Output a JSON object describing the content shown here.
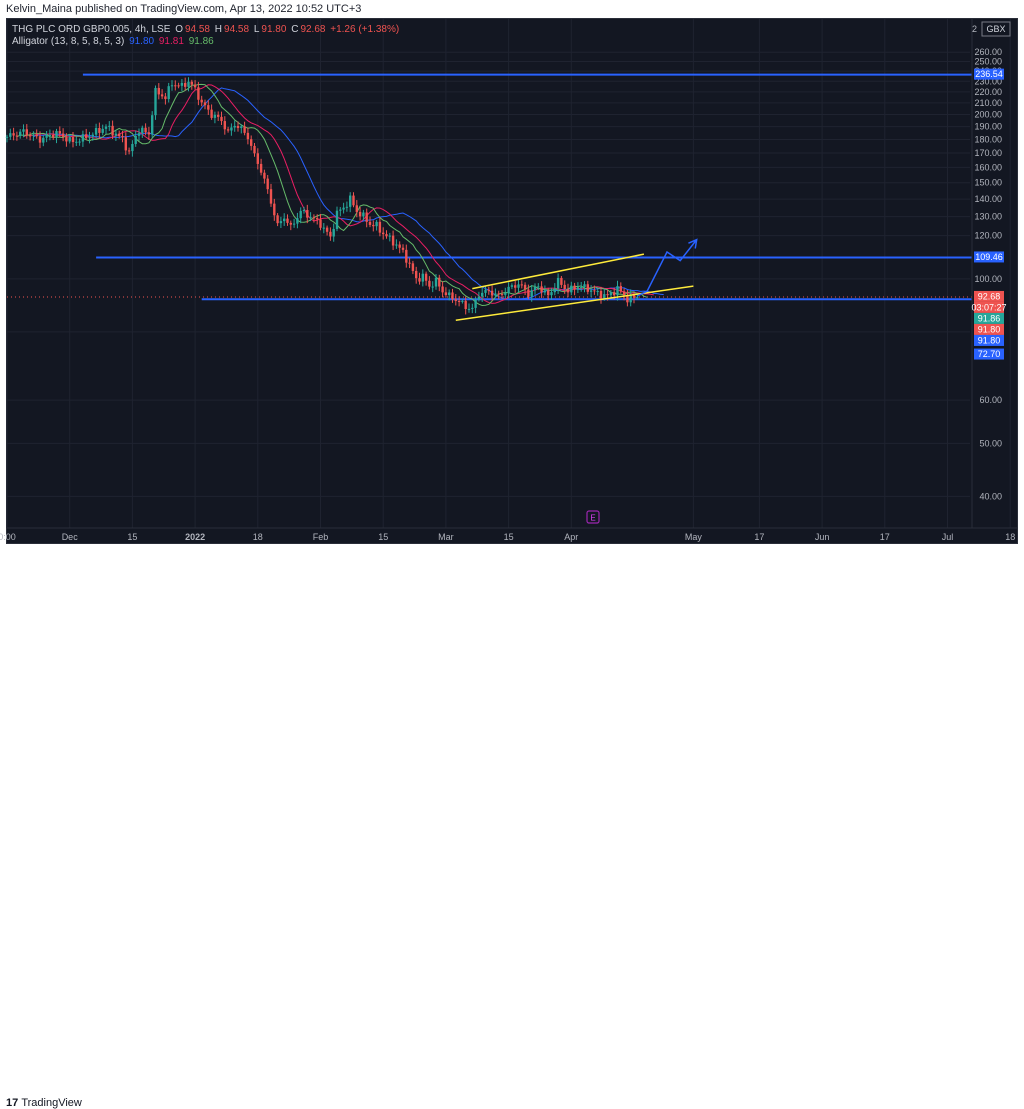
{
  "header": {
    "publish_line": "Kelvin_Maina published on TradingView.com, Apr 13, 2022 10:52 UTC+3"
  },
  "legend": {
    "symbol": "THG PLC ORD GBP0.005, 4h, LSE",
    "open_label": "O",
    "open": "94.58",
    "high_label": "H",
    "high": "94.58",
    "low_label": "L",
    "low": "91.80",
    "close_label": "C",
    "close": "92.68",
    "change": "+1.26 (+1.38%)",
    "indicator": "Alligator (13, 8, 5, 8, 5, 3)",
    "jaw": "91.80",
    "teeth": "91.81",
    "lips": "91.86"
  },
  "currency": "GBX",
  "corner_label": "2",
  "event_marker": "E",
  "footer": {
    "logo_text": "TradingView",
    "logo_mark": "17"
  },
  "colors": {
    "background": "#131722",
    "up": "#26a69a",
    "down": "#ef5350",
    "jaw": "#2962ff",
    "teeth": "#e91e63",
    "lips": "#66bb6a",
    "level_line": "#2962ff",
    "channel": "#ffeb3b"
  },
  "chart_data": {
    "type": "candlestick",
    "title": "THG PLC ORD GBP0.005, 4h, LSE",
    "ylim": [
      35,
      268
    ],
    "y_ticks": [
      260,
      250,
      240,
      230,
      220,
      210,
      200,
      190,
      180,
      170,
      160,
      150,
      140,
      130,
      120,
      100,
      80,
      60,
      50,
      40
    ],
    "x_ticks": [
      "0:00",
      "Dec",
      "15",
      "2022",
      "18",
      "Feb",
      "15",
      "Mar",
      "15",
      "Apr",
      "May",
      "17",
      "Jun",
      "17",
      "Jul",
      "18"
    ],
    "x_tick_index": [
      0,
      19,
      38,
      57,
      76,
      95,
      114,
      133,
      152,
      171,
      208,
      228,
      247,
      266,
      285,
      304
    ],
    "price_path": {
      "x": [
        0,
        5,
        10,
        15,
        20,
        25,
        30,
        35,
        37,
        40,
        43,
        45,
        48,
        50,
        53,
        55,
        57,
        59,
        62,
        65,
        67,
        69,
        71,
        73,
        75,
        77,
        79,
        82,
        84,
        86,
        89,
        92,
        95,
        98,
        100,
        102,
        104,
        106,
        108,
        110,
        112,
        114,
        117,
        120,
        122,
        124,
        126,
        128,
        130,
        132,
        134,
        137,
        139,
        141,
        143,
        146,
        149,
        152,
        155,
        158,
        161,
        164,
        167,
        170,
        173,
        176,
        179,
        182,
        185,
        188,
        191
      ],
      "close": [
        182,
        186,
        180,
        185,
        178,
        183,
        190,
        180,
        170,
        188,
        184,
        220,
        215,
        228,
        225,
        230,
        222,
        210,
        200,
        195,
        185,
        192,
        188,
        182,
        168,
        158,
        145,
        125,
        130,
        124,
        133,
        130,
        126,
        119,
        132,
        135,
        140,
        133,
        130,
        126,
        125,
        121,
        117,
        112,
        106,
        100,
        101,
        97,
        99,
        95,
        93,
        91,
        89,
        88,
        94,
        95,
        93,
        96,
        98,
        94,
        97,
        93,
        99,
        95,
        97,
        96,
        94,
        93,
        96,
        92,
        92.68
      ]
    },
    "series": [
      {
        "name": "Alligator Jaw",
        "value": 91.8
      },
      {
        "name": "Alligator Teeth",
        "value": 91.81
      },
      {
        "name": "Alligator Lips",
        "value": 91.86
      }
    ],
    "horizontal_levels": [
      236.54,
      109.46,
      91.8
    ],
    "price_labels": [
      {
        "text": "236.54",
        "value": 236.54,
        "color": "#2962ff"
      },
      {
        "text": "109.46",
        "value": 109.46,
        "color": "#2962ff"
      },
      {
        "text": "92.68",
        "value": 92.68,
        "color": "#ef5350"
      },
      {
        "text": "03:07:27",
        "value": 92.68,
        "color": "#ef5350"
      },
      {
        "text": "91.86",
        "value": 91.86,
        "color": "#26a69a"
      },
      {
        "text": "91.80",
        "value": 91.8,
        "color": "#ef5350"
      },
      {
        "text": "91.80",
        "value": 91.8,
        "color": "#2962ff"
      },
      {
        "text": "72.70",
        "value": 72.7,
        "color": "#2962ff"
      }
    ],
    "channel": {
      "upper": [
        {
          "x": 141,
          "y": 96
        },
        {
          "x": 193,
          "y": 111
        }
      ],
      "lower": [
        {
          "x": 136,
          "y": 84
        },
        {
          "x": 208,
          "y": 97
        }
      ]
    },
    "projection": [
      {
        "x": 191,
        "y": 93
      },
      {
        "x": 194,
        "y": 95
      },
      {
        "x": 200,
        "y": 112
      },
      {
        "x": 204,
        "y": 108
      },
      {
        "x": 209,
        "y": 118
      }
    ],
    "grid": true,
    "legend_position": "top-left"
  }
}
